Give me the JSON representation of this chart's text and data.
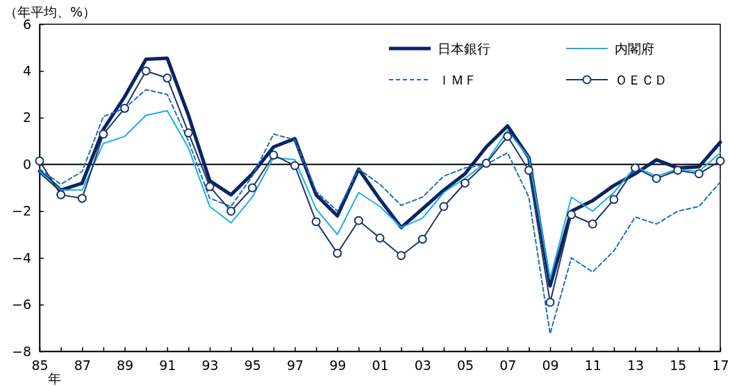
{
  "chart_data": {
    "type": "line",
    "ylabel": "（年平均、%）",
    "xlabel": "年",
    "x": [
      1985,
      1986,
      1987,
      1988,
      1989,
      1990,
      1991,
      1992,
      1993,
      1994,
      1995,
      1996,
      1997,
      1998,
      1999,
      2000,
      2001,
      2002,
      2003,
      2004,
      2005,
      2006,
      2007,
      2008,
      2009,
      2010,
      2011,
      2012,
      2013,
      2014,
      2015,
      2016,
      2017
    ],
    "xlim": [
      1985,
      2017
    ],
    "xticks": [
      {
        "value": 1985,
        "label": "85"
      },
      {
        "value": 1986,
        "label": null
      },
      {
        "value": 1987,
        "label": "87"
      },
      {
        "value": 1988,
        "label": null
      },
      {
        "value": 1989,
        "label": "89"
      },
      {
        "value": 1990,
        "label": null
      },
      {
        "value": 1991,
        "label": "91"
      },
      {
        "value": 1992,
        "label": null
      },
      {
        "value": 1993,
        "label": "93"
      },
      {
        "value": 1994,
        "label": null
      },
      {
        "value": 1995,
        "label": "95"
      },
      {
        "value": 1996,
        "label": null
      },
      {
        "value": 1997,
        "label": "97"
      },
      {
        "value": 1998,
        "label": null
      },
      {
        "value": 1999,
        "label": "99"
      },
      {
        "value": 2000,
        "label": null
      },
      {
        "value": 2001,
        "label": "01"
      },
      {
        "value": 2002,
        "label": null
      },
      {
        "value": 2003,
        "label": "03"
      },
      {
        "value": 2004,
        "label": null
      },
      {
        "value": 2005,
        "label": "05"
      },
      {
        "value": 2006,
        "label": null
      },
      {
        "value": 2007,
        "label": "07"
      },
      {
        "value": 2008,
        "label": null
      },
      {
        "value": 2009,
        "label": "09"
      },
      {
        "value": 2010,
        "label": null
      },
      {
        "value": 2011,
        "label": "11"
      },
      {
        "value": 2012,
        "label": null
      },
      {
        "value": 2013,
        "label": "13"
      },
      {
        "value": 2014,
        "label": null
      },
      {
        "value": 2015,
        "label": "15"
      },
      {
        "value": 2016,
        "label": null
      },
      {
        "value": 2017,
        "label": "17"
      }
    ],
    "ylim": [
      -8,
      6
    ],
    "yticks": [
      -8,
      -6,
      -4,
      -2,
      0,
      2,
      4,
      6
    ],
    "grid": false,
    "legend": "top right",
    "ref_lines": [
      {
        "axis": "y",
        "value": 0,
        "color": "#000000"
      }
    ],
    "series": [
      {
        "name": "日本銀行",
        "color": "#0a2463",
        "line_style": "solid",
        "marker": "none",
        "values": [
          -0.3,
          -1.1,
          -0.8,
          1.5,
          2.9,
          4.5,
          4.55,
          2.1,
          -0.7,
          -1.3,
          -0.4,
          0.75,
          1.1,
          -1.3,
          -2.2,
          -0.2,
          -1.5,
          -2.7,
          -1.9,
          -1.1,
          -0.4,
          0.75,
          1.65,
          0.3,
          -5.2,
          -2.0,
          -1.55,
          -0.9,
          -0.4,
          0.2,
          -0.15,
          -0.1,
          0.95
        ]
      },
      {
        "name": "内閣府",
        "color": "#1aaeea",
        "line_style": "solid",
        "marker": "none",
        "values": [
          -0.3,
          -1.1,
          -1.1,
          0.9,
          1.2,
          2.1,
          2.3,
          0.7,
          -1.8,
          -2.5,
          -1.4,
          0.3,
          0.2,
          -1.9,
          -3.0,
          -1.2,
          -1.8,
          -2.7,
          -2.3,
          -1.2,
          -0.6,
          0.1,
          1.45,
          0.3,
          -4.9,
          -1.4,
          -2.0,
          -1.2,
          -0.1,
          -0.5,
          -0.2,
          -0.3,
          0.5
        ]
      },
      {
        "name": "ＩＭＦ",
        "color": "#1a6fbf",
        "line_style": "dashed",
        "marker": "none",
        "values": [
          -0.2,
          -0.85,
          -0.3,
          2.05,
          2.4,
          3.2,
          3.0,
          1.0,
          -1.45,
          -1.8,
          -0.5,
          1.3,
          1.05,
          -1.15,
          -2.0,
          -0.2,
          -0.85,
          -1.75,
          -1.4,
          -0.5,
          -0.15,
          0.0,
          0.5,
          -1.4,
          -7.25,
          -4.0,
          -4.6,
          -3.7,
          -2.25,
          -2.55,
          -2.0,
          -1.8,
          -0.75
        ]
      },
      {
        "name": "ＯＥＣＤ",
        "color": "#1b3566",
        "line_style": "solid",
        "marker": "circle",
        "values": [
          0.15,
          -1.3,
          -1.45,
          1.3,
          2.4,
          4.0,
          3.7,
          1.35,
          -0.95,
          -2.0,
          -1.0,
          0.4,
          -0.05,
          -2.45,
          -3.8,
          -2.4,
          -3.15,
          -3.9,
          -3.2,
          -1.8,
          -0.8,
          0.05,
          1.2,
          -0.25,
          -5.9,
          -2.15,
          -2.55,
          -1.5,
          -0.15,
          -0.6,
          -0.25,
          -0.4,
          0.15
        ]
      }
    ]
  }
}
